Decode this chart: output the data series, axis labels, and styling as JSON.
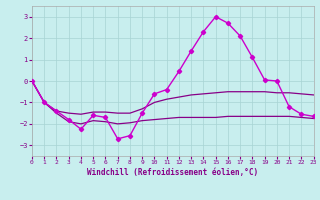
{
  "xlabel": "Windchill (Refroidissement éolien,°C)",
  "xlim": [
    0,
    23
  ],
  "ylim": [
    -3.5,
    3.5
  ],
  "yticks": [
    -3,
    -2,
    -1,
    0,
    1,
    2,
    3
  ],
  "xticks": [
    0,
    1,
    2,
    3,
    4,
    5,
    6,
    7,
    8,
    9,
    10,
    11,
    12,
    13,
    14,
    15,
    16,
    17,
    18,
    19,
    20,
    21,
    22,
    23
  ],
  "bg_color": "#c8eeee",
  "line_color_main": "#cc00cc",
  "line_color_flat1": "#880088",
  "line_color_flat2": "#880088",
  "grid_color": "#a8d4d4",
  "x": [
    0,
    1,
    2,
    3,
    4,
    5,
    6,
    7,
    8,
    9,
    10,
    11,
    12,
    13,
    14,
    15,
    16,
    17,
    18,
    19,
    20,
    21,
    22,
    23
  ],
  "y_main": [
    0,
    -1,
    -1.4,
    -1.8,
    -2.25,
    -1.6,
    -1.7,
    -2.7,
    -2.55,
    -1.5,
    -0.6,
    -0.4,
    0.45,
    1.4,
    2.3,
    3.0,
    2.7,
    2.1,
    1.1,
    0.05,
    0.0,
    -1.2,
    -1.55,
    -1.65
  ],
  "y_upper": [
    0,
    -1,
    -1.4,
    -1.5,
    -1.55,
    -1.45,
    -1.45,
    -1.5,
    -1.5,
    -1.3,
    -1.0,
    -0.85,
    -0.75,
    -0.65,
    -0.6,
    -0.55,
    -0.5,
    -0.5,
    -0.5,
    -0.5,
    -0.55,
    -0.55,
    -0.6,
    -0.65
  ],
  "y_lower": [
    0,
    -1,
    -1.5,
    -1.9,
    -2.0,
    -1.85,
    -1.9,
    -2.0,
    -1.95,
    -1.85,
    -1.8,
    -1.75,
    -1.7,
    -1.7,
    -1.7,
    -1.7,
    -1.65,
    -1.65,
    -1.65,
    -1.65,
    -1.65,
    -1.65,
    -1.7,
    -1.75
  ]
}
